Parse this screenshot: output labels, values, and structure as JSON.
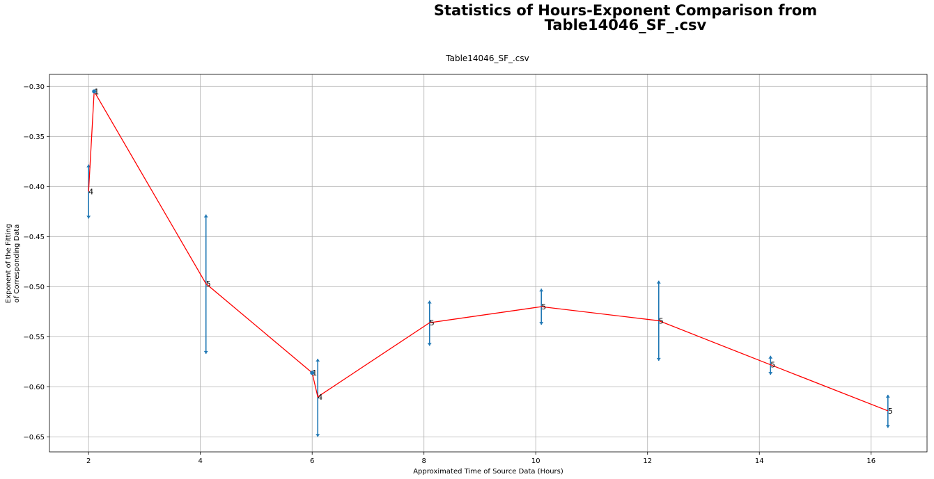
{
  "chart_data": {
    "type": "line",
    "title_lines": [
      "Statistics of Hours-Exponent Comparison from",
      "Table14046_SF_.csv"
    ],
    "subtitle": "Table14046_SF_.csv",
    "xlabel": "Approximated Time of Source Data (Hours)",
    "ylabel_lines": [
      "Exponent of the Fitting",
      "of Corresponding Data"
    ],
    "xlim": [
      1.3,
      17.0
    ],
    "ylim": [
      -0.665,
      -0.288
    ],
    "xticks": [
      2,
      4,
      6,
      8,
      10,
      12,
      14,
      16
    ],
    "yticks": [
      -0.3,
      -0.35,
      -0.4,
      -0.45,
      -0.5,
      -0.55,
      -0.6,
      -0.65
    ],
    "xtick_labels": [
      "2",
      "4",
      "6",
      "8",
      "10",
      "12",
      "14",
      "16"
    ],
    "ytick_labels": [
      "−0.30",
      "−0.35",
      "−0.40",
      "−0.45",
      "−0.50",
      "−0.55",
      "−0.60",
      "−0.65"
    ],
    "grid": true,
    "line_color": "#ff0000",
    "errorbar_color": "#1f77b4",
    "points": [
      {
        "x": 2.0,
        "y": -0.405,
        "low": -0.432,
        "high": -0.378,
        "label": "4"
      },
      {
        "x": 2.1,
        "y": -0.305,
        "low": -0.305,
        "high": -0.305,
        "label": "1"
      },
      {
        "x": 4.1,
        "y": -0.497,
        "low": -0.567,
        "high": -0.428,
        "label": "5"
      },
      {
        "x": 6.0,
        "y": -0.586,
        "low": -0.586,
        "high": -0.586,
        "label": "1"
      },
      {
        "x": 6.1,
        "y": -0.61,
        "low": -0.65,
        "high": -0.572,
        "label": "4"
      },
      {
        "x": 8.1,
        "y": -0.536,
        "low": -0.559,
        "high": -0.514,
        "label": "5"
      },
      {
        "x": 10.1,
        "y": -0.52,
        "low": -0.538,
        "high": -0.502,
        "label": "5"
      },
      {
        "x": 12.2,
        "y": -0.534,
        "low": -0.574,
        "high": -0.494,
        "label": "5"
      },
      {
        "x": 14.2,
        "y": -0.578,
        "low": -0.588,
        "high": -0.569,
        "label": "5"
      },
      {
        "x": 16.3,
        "y": -0.624,
        "low": -0.641,
        "high": -0.608,
        "label": "5"
      }
    ]
  }
}
